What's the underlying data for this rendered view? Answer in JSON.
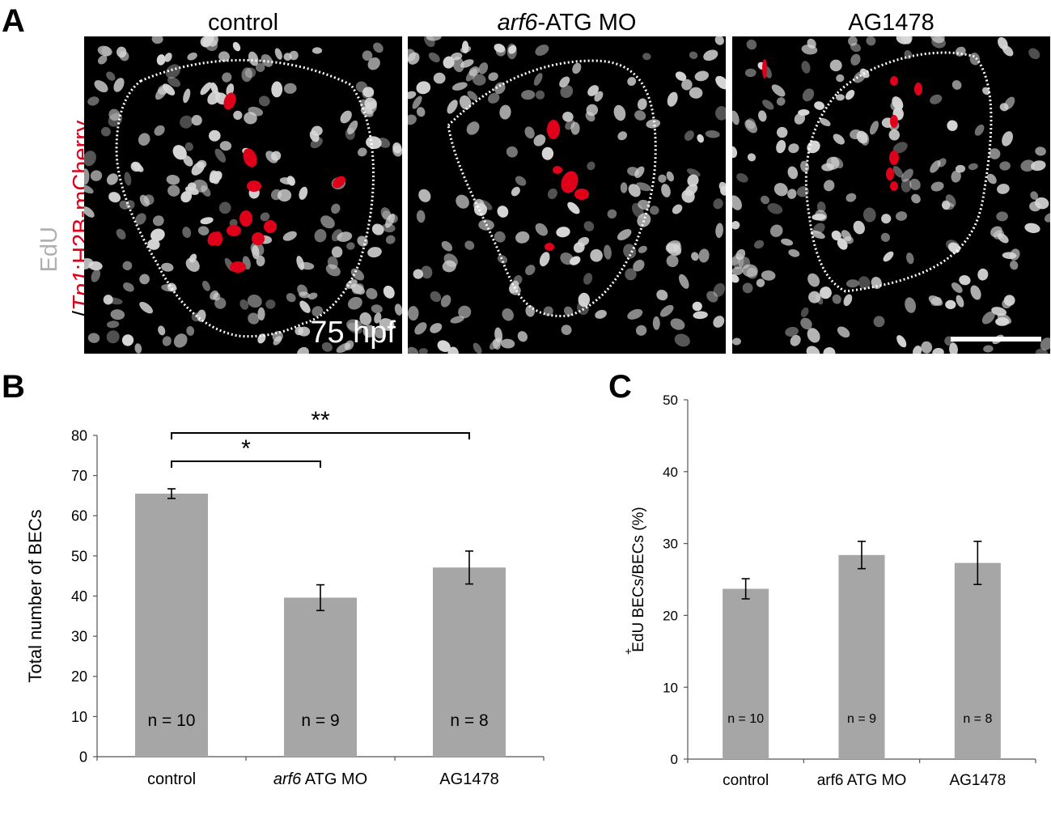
{
  "panels": {
    "A": "A",
    "B": "B",
    "C": "C"
  },
  "panel_a": {
    "titles": {
      "control": "control",
      "mo_italic": "arf6",
      "mo_rest": "-ATG MO",
      "ag": "AG1478"
    },
    "timepoint": "75 hpf",
    "ylabel_edu": "EdU",
    "ylabel_slash": "/",
    "ylabel_tp1": "Tp1",
    "ylabel_rest": ":H2B-mCherry",
    "colors": {
      "nuclei": "#d8d8d8",
      "mcherry": "#e0001a",
      "outline": "#ffffff"
    }
  },
  "chart_data": [
    {
      "type": "bar",
      "panel": "B",
      "categories": [
        "control",
        "arf6 ATG MO",
        "AG1478"
      ],
      "category_italic_part": [
        "",
        "arf6",
        ""
      ],
      "category_plain_part": [
        "control",
        " ATG MO",
        "AG1478"
      ],
      "values": [
        65.5,
        39.6,
        47.1
      ],
      "errors": [
        1.2,
        3.2,
        4.1
      ],
      "n_labels": [
        "n = 10",
        "n = 9",
        "n = 8"
      ],
      "ylabel": "Total number of BECs",
      "xlabel": "",
      "ylim": [
        0,
        80
      ],
      "yticks": [
        0,
        10,
        20,
        30,
        40,
        50,
        60,
        70,
        80
      ],
      "bar_color": "#a6a6a6",
      "significance": [
        {
          "from": 0,
          "to": 1,
          "label": "*"
        },
        {
          "from": 0,
          "to": 2,
          "label": "**"
        }
      ]
    },
    {
      "type": "bar",
      "panel": "C",
      "categories": [
        "control",
        "arf6 ATG MO",
        "AG1478"
      ],
      "values": [
        23.7,
        28.4,
        27.3
      ],
      "errors": [
        1.4,
        1.9,
        3.0
      ],
      "n_labels": [
        "n = 10",
        "n = 9",
        "n = 8"
      ],
      "ylabel": "EdU  BECs/BECs (%)",
      "ylabel_plus": "+",
      "xlabel": "",
      "ylim": [
        0,
        50
      ],
      "yticks": [
        0,
        10,
        20,
        30,
        40,
        50
      ],
      "bar_color": "#a6a6a6"
    }
  ]
}
